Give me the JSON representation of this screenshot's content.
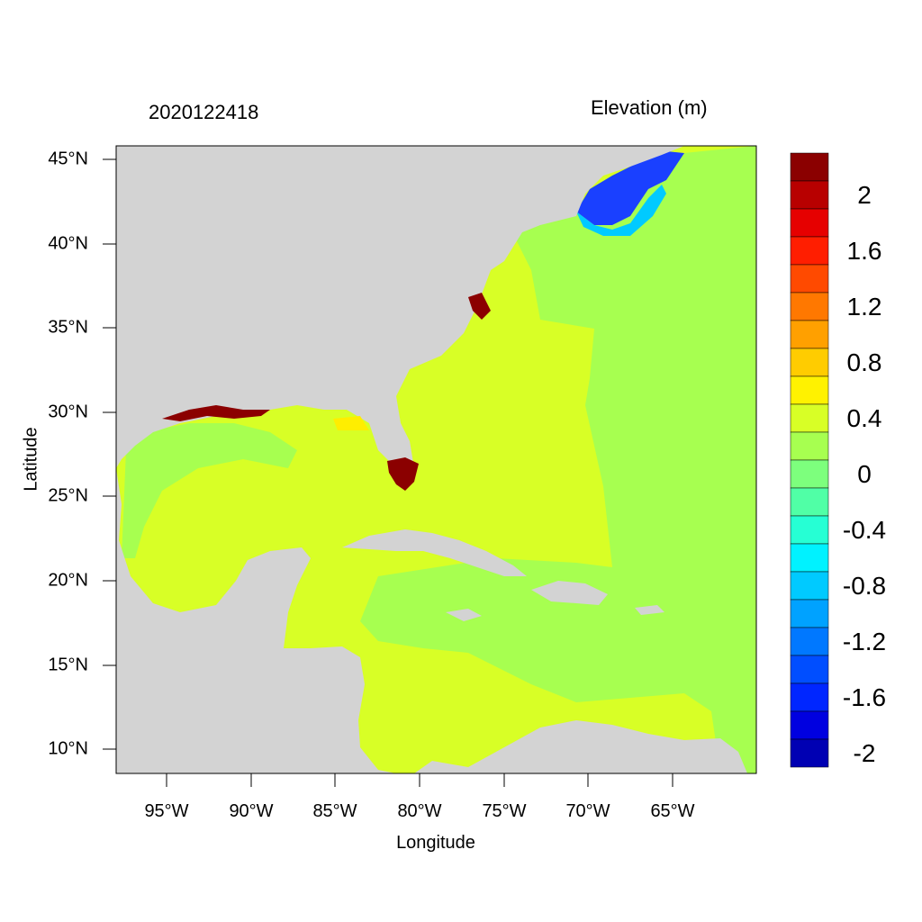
{
  "title_left": "2020122418",
  "title_right": "Elevation (m)",
  "xlabel": "Longitude",
  "ylabel": "Latitude",
  "colors": {
    "land": "#d3d3d3",
    "ocean_0_04": "#d8ff26",
    "ocean_0_m04": "#a7ff50",
    "yellow": "#ffee00",
    "dark_red": "#8b0000",
    "blue_dark": "#1a40ff"
  },
  "x_ticks": [
    "95°W",
    "90°W",
    "85°W",
    "80°W",
    "75°W",
    "70°W",
    "65°W"
  ],
  "y_ticks": [
    "45°N",
    "40°N",
    "35°N",
    "30°N",
    "25°N",
    "20°N",
    "15°N",
    "10°N"
  ],
  "legend": {
    "labels": [
      "2",
      "1.6",
      "1.2",
      "0.8",
      "0.4",
      "0",
      "-0.4",
      "-0.8",
      "-1.2",
      "-1.6",
      "-2"
    ],
    "colors": [
      "#8b0000",
      "#b80000",
      "#e60000",
      "#ff1e00",
      "#ff4a00",
      "#ff7800",
      "#ffa000",
      "#ffcc00",
      "#fff200",
      "#d8ff26",
      "#a7ff50",
      "#7dff7d",
      "#50ffa6",
      "#26ffd4",
      "#00f2ff",
      "#00caff",
      "#00a2ff",
      "#0078ff",
      "#004eff",
      "#0026ff",
      "#0000e0",
      "#0000b3"
    ]
  },
  "chart_data": {
    "type": "heatmap",
    "x_ticks": [
      "95°W",
      "90°W",
      "85°W",
      "80°W",
      "75°W",
      "70°W",
      "65°W"
    ],
    "y_ticks": [
      "45°N",
      "40°N",
      "35°N",
      "30°N",
      "25°N",
      "20°N",
      "15°N",
      "10°N"
    ],
    "xlim": [
      -98,
      -60
    ],
    "ylim": [
      8.5,
      46
    ],
    "xlabel": "Longitude",
    "ylabel": "Latitude",
    "colorbar_levels": [
      2,
      1.6,
      1.2,
      0.8,
      0.4,
      0,
      -0.4,
      -0.8,
      -1.2,
      -1.6,
      -2
    ]
  }
}
